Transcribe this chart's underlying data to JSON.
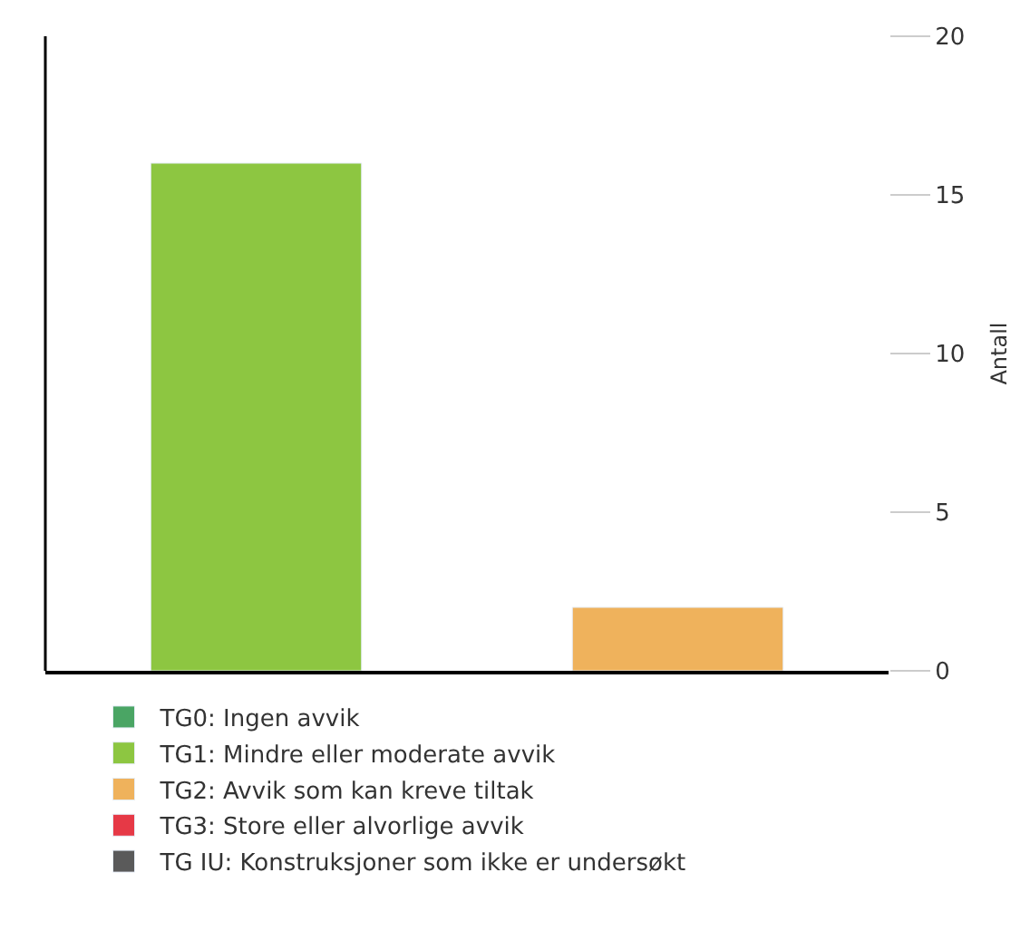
{
  "chart_data": {
    "type": "bar",
    "ylabel": "Antall",
    "categories": [
      null,
      null
    ],
    "stacked": true,
    "series": [
      {
        "name": "TG0: Ingen avvik",
        "color": "#4aa564",
        "values": [
          null,
          null
        ]
      },
      {
        "name": "TG1: Mindre eller moderate avvik",
        "color": "#8dc641",
        "values": [
          16,
          null
        ]
      },
      {
        "name": "TG2: Avvik som kan kreve tiltak",
        "color": "#efb25c",
        "values": [
          null,
          2
        ]
      },
      {
        "name": "TG3: Store eller alvorlige avvik",
        "color": "#e63946",
        "values": [
          null,
          null
        ]
      },
      {
        "name": "TG IU: Konstruksjoner som ikke er undersøkt",
        "color": "#5a5a5a",
        "values": [
          null,
          null
        ]
      }
    ],
    "ylim": [
      0,
      20
    ],
    "yticks": [
      0,
      5,
      10,
      15,
      20
    ],
    "legend": "bottom"
  }
}
